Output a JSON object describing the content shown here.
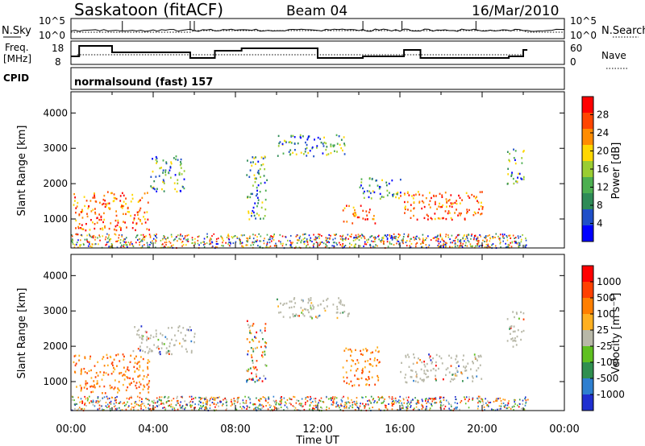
{
  "header": {
    "station": "Saskatoon (fitACF)",
    "beam": "Beam 04",
    "date": "16/Mar/2010"
  },
  "noise_panel": {
    "left_label": "N.Sky",
    "right_label": "N.Search",
    "left_ticks": [
      "10^5",
      "10^0"
    ],
    "right_ticks": [
      "10^5",
      "10^0"
    ]
  },
  "freq_panel": {
    "left_label_1": "Freq.",
    "left_label_2": "[MHz]",
    "right_label": "Nave",
    "left_ticks": [
      "18",
      "8"
    ],
    "right_ticks": [
      "60",
      "0"
    ]
  },
  "cpid": {
    "label": "CPID",
    "program": "normalsound (fast) 157"
  },
  "colors": {
    "power": [
      "#0000ff",
      "#1f4fc8",
      "#2e8b57",
      "#4caf50",
      "#9acd32",
      "#ffd700",
      "#ff8c00",
      "#ff4500",
      "#ff0000"
    ],
    "velocity": [
      "#1f2fd0",
      "#2e7fd0",
      "#2f8f4f",
      "#5fc020",
      "#b8b8a8",
      "#ffb020",
      "#ff7f00",
      "#ff4000",
      "#ff0000"
    ]
  },
  "chart_data": [
    {
      "type": "heatmap",
      "name": "power",
      "title": "",
      "xlabel": "",
      "ylabel": "Slant Range [km]",
      "xlim_hours": [
        0,
        24
      ],
      "ylim_km": [
        180,
        4600
      ],
      "y_ticks": [
        "1000",
        "2000",
        "3000",
        "4000"
      ],
      "colorbar": {
        "label": "Power [dB]",
        "ticks": [
          "28",
          "24",
          "20",
          "16",
          "12",
          "8",
          "4"
        ]
      },
      "echo_regions": [
        {
          "t": [
            0.1,
            3.8
          ],
          "r": [
            700,
            1800
          ],
          "level": "strong"
        },
        {
          "t": [
            3.8,
            5.5
          ],
          "r": [
            1800,
            2800
          ],
          "level": "moderate"
        },
        {
          "t": [
            8.5,
            9.5
          ],
          "r": [
            1000,
            2800
          ],
          "level": "moderate"
        },
        {
          "t": [
            10.0,
            13.5
          ],
          "r": [
            2800,
            3400
          ],
          "level": "moderate"
        },
        {
          "t": [
            13.2,
            14.8
          ],
          "r": [
            900,
            1400
          ],
          "level": "strong"
        },
        {
          "t": [
            14.0,
            16.0
          ],
          "r": [
            1600,
            2200
          ],
          "level": "moderate"
        },
        {
          "t": [
            16.0,
            20.0
          ],
          "r": [
            1000,
            1800
          ],
          "level": "strong"
        },
        {
          "t": [
            21.2,
            22.0
          ],
          "r": [
            2000,
            3000
          ],
          "level": "moderate"
        }
      ]
    },
    {
      "type": "heatmap",
      "name": "velocity",
      "title": "",
      "xlabel": "Time UT",
      "ylabel": "Slant Range [km]",
      "xlim_hours": [
        0,
        24
      ],
      "ylim_km": [
        180,
        4600
      ],
      "y_ticks": [
        "1000",
        "2000",
        "3000",
        "4000"
      ],
      "x_ticks": [
        "00:00",
        "04:00",
        "08:00",
        "12:00",
        "16:00",
        "20:00",
        "00:00"
      ],
      "colorbar": {
        "label": "Velocity [m s⁻¹]",
        "ticks": [
          "1000",
          "500",
          "100",
          "25",
          "-25",
          "-100",
          "-500",
          "-1000"
        ]
      },
      "echo_regions": [
        {
          "t": [
            0.1,
            3.8
          ],
          "r": [
            700,
            1800
          ],
          "level": "toward"
        },
        {
          "t": [
            3.0,
            6.0
          ],
          "r": [
            1800,
            2600
          ],
          "level": "low"
        },
        {
          "t": [
            8.5,
            9.5
          ],
          "r": [
            1000,
            2800
          ],
          "level": "mixed"
        },
        {
          "t": [
            10.0,
            13.5
          ],
          "r": [
            2800,
            3400
          ],
          "level": "low"
        },
        {
          "t": [
            13.2,
            15.0
          ],
          "r": [
            900,
            2000
          ],
          "level": "toward"
        },
        {
          "t": [
            16.0,
            20.0
          ],
          "r": [
            1000,
            1800
          ],
          "level": "low"
        },
        {
          "t": [
            21.2,
            22.0
          ],
          "r": [
            2000,
            3000
          ],
          "level": "low"
        }
      ]
    }
  ]
}
